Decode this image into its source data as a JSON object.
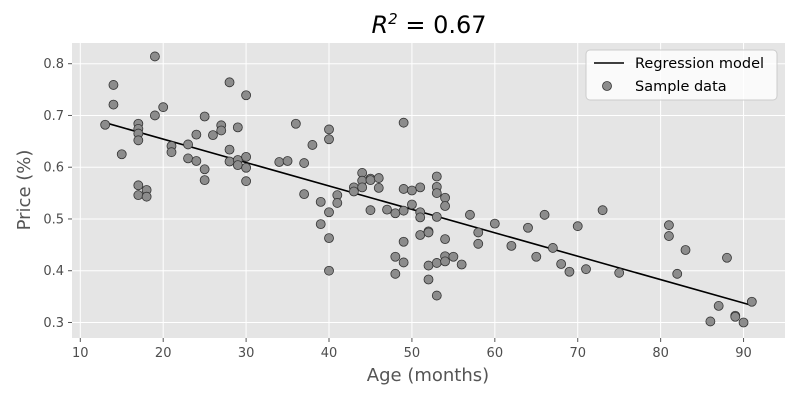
{
  "chart_data": {
    "type": "scatter",
    "title_base": "R",
    "title_sup": "2",
    "title_rest": " = 0.67",
    "xlabel": "Age (months)",
    "ylabel": "Price (%)",
    "xlim": [
      9,
      95
    ],
    "ylim": [
      0.27,
      0.84
    ],
    "xticks": [
      10,
      20,
      30,
      40,
      50,
      60,
      70,
      80,
      90
    ],
    "yticks": [
      0.3,
      0.4,
      0.5,
      0.6,
      0.7,
      0.8
    ],
    "grid": true,
    "legend_position": "top-right",
    "colors": {
      "plot_background": "#e5e5e5",
      "grid": "#ffffff",
      "line": "#000000",
      "point_fill": "#8c8c8c",
      "point_edge": "#333333"
    },
    "series": [
      {
        "name": "Regression model",
        "kind": "line",
        "x": [
          13,
          91
        ],
        "y": [
          0.686,
          0.333
        ]
      },
      {
        "name": "Sample data",
        "kind": "scatter",
        "x": [
          13,
          14,
          14,
          15,
          17,
          17,
          17,
          17,
          17,
          17,
          18,
          18,
          19,
          19,
          20,
          21,
          21,
          23,
          23,
          24,
          24,
          25,
          25,
          25,
          26,
          27,
          27,
          28,
          28,
          28,
          29,
          29,
          29,
          30,
          30,
          30,
          30,
          34,
          35,
          36,
          37,
          37,
          38,
          39,
          39,
          40,
          40,
          40,
          40,
          40,
          41,
          41,
          43,
          43,
          44,
          44,
          44,
          45,
          45,
          45,
          46,
          46,
          47,
          48,
          48,
          48,
          49,
          49,
          49,
          49,
          49,
          50,
          50,
          51,
          51,
          51,
          51,
          52,
          52,
          52,
          52,
          53,
          53,
          53,
          53,
          53,
          53,
          54,
          54,
          54,
          54,
          54,
          55,
          56,
          57,
          58,
          58,
          60,
          62,
          64,
          65,
          66,
          67,
          68,
          69,
          70,
          71,
          73,
          75,
          81,
          81,
          82,
          83,
          86,
          87,
          88,
          89,
          89,
          90,
          91
        ],
        "y": [
          0.682,
          0.721,
          0.759,
          0.625,
          0.684,
          0.674,
          0.665,
          0.652,
          0.565,
          0.546,
          0.556,
          0.543,
          0.814,
          0.7,
          0.716,
          0.641,
          0.629,
          0.644,
          0.617,
          0.663,
          0.612,
          0.698,
          0.596,
          0.575,
          0.662,
          0.681,
          0.671,
          0.764,
          0.634,
          0.611,
          0.677,
          0.614,
          0.604,
          0.739,
          0.62,
          0.599,
          0.573,
          0.61,
          0.612,
          0.684,
          0.608,
          0.548,
          0.643,
          0.533,
          0.49,
          0.673,
          0.654,
          0.513,
          0.463,
          0.4,
          0.546,
          0.531,
          0.561,
          0.553,
          0.589,
          0.574,
          0.561,
          0.578,
          0.575,
          0.517,
          0.579,
          0.56,
          0.518,
          0.511,
          0.427,
          0.394,
          0.686,
          0.558,
          0.516,
          0.456,
          0.416,
          0.555,
          0.528,
          0.561,
          0.513,
          0.503,
          0.469,
          0.476,
          0.41,
          0.383,
          0.474,
          0.582,
          0.562,
          0.55,
          0.504,
          0.415,
          0.352,
          0.541,
          0.525,
          0.461,
          0.428,
          0.418,
          0.427,
          0.412,
          0.508,
          0.474,
          0.452,
          0.491,
          0.448,
          0.483,
          0.427,
          0.508,
          0.444,
          0.413,
          0.398,
          0.486,
          0.403,
          0.517,
          0.396,
          0.488,
          0.467,
          0.394,
          0.44,
          0.302,
          0.332,
          0.425,
          0.313,
          0.311,
          0.3,
          0.34
        ]
      }
    ]
  }
}
